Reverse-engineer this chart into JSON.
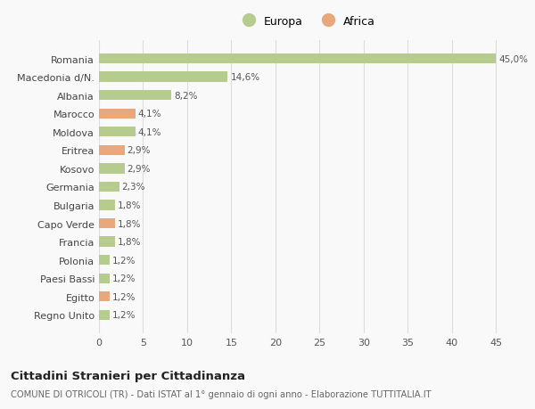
{
  "categories": [
    "Romania",
    "Macedonia d/N.",
    "Albania",
    "Marocco",
    "Moldova",
    "Eritrea",
    "Kosovo",
    "Germania",
    "Bulgaria",
    "Capo Verde",
    "Francia",
    "Polonia",
    "Paesi Bassi",
    "Egitto",
    "Regno Unito"
  ],
  "values": [
    45.0,
    14.6,
    8.2,
    4.1,
    4.1,
    2.9,
    2.9,
    2.3,
    1.8,
    1.8,
    1.8,
    1.2,
    1.2,
    1.2,
    1.2
  ],
  "labels": [
    "45,0%",
    "14,6%",
    "8,2%",
    "4,1%",
    "4,1%",
    "2,9%",
    "2,9%",
    "2,3%",
    "1,8%",
    "1,8%",
    "1,8%",
    "1,2%",
    "1,2%",
    "1,2%",
    "1,2%"
  ],
  "continents": [
    "Europa",
    "Europa",
    "Europa",
    "Africa",
    "Europa",
    "Africa",
    "Europa",
    "Europa",
    "Europa",
    "Africa",
    "Europa",
    "Europa",
    "Europa",
    "Africa",
    "Europa"
  ],
  "color_europa": "#b5cc8e",
  "color_africa": "#e8a87c",
  "background_color": "#f9f9f9",
  "grid_color": "#dddddd",
  "title": "Cittadini Stranieri per Cittadinanza",
  "subtitle": "COMUNE DI OTRICOLI (TR) - Dati ISTAT al 1° gennaio di ogni anno - Elaborazione TUTTITALIA.IT",
  "xlim": [
    0,
    47
  ],
  "xticks": [
    0,
    5,
    10,
    15,
    20,
    25,
    30,
    35,
    40,
    45
  ],
  "legend_europa": "Europa",
  "legend_africa": "Africa"
}
